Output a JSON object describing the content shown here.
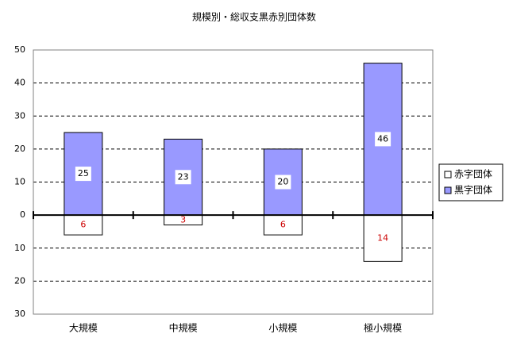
{
  "chart_data": {
    "type": "bar",
    "stacked": true,
    "title": "規模別・総収支黒赤別団体数",
    "categories": [
      "大規模",
      "中規模",
      "小規模",
      "極小規模"
    ],
    "series": [
      {
        "name": "赤字団体",
        "color": "#ffffff",
        "values": [
          -6,
          -3,
          -6,
          -14
        ],
        "value_labels": [
          "6",
          "3",
          "6",
          "14"
        ]
      },
      {
        "name": "黒字団体",
        "color": "#9999ff",
        "values": [
          25,
          23,
          20,
          46
        ]
      }
    ],
    "ylim": [
      -30,
      50
    ],
    "yticks": [
      50,
      40,
      30,
      20,
      10,
      0,
      {
        "value": -10,
        "label": "10"
      },
      {
        "value": -20,
        "label": "20"
      },
      {
        "value": -30,
        "label": "30"
      }
    ],
    "grid": true,
    "legend": "right"
  }
}
